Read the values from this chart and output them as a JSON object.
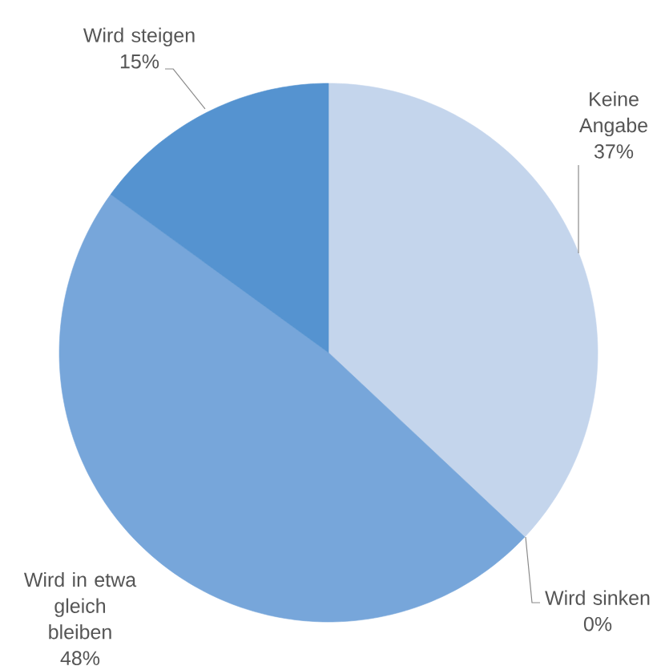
{
  "chart_data": {
    "type": "pie",
    "categories": [
      "Keine Angabe",
      "Wird sinken",
      "Wird in etwa gleich bleiben",
      "Wird steigen"
    ],
    "values": [
      37,
      0,
      48,
      15
    ],
    "colors": [
      "#c4d5ec",
      null,
      "#77a6da",
      "#5593d0"
    ],
    "value_labels": [
      "37%",
      "0%",
      "48%",
      "15%"
    ]
  }
}
